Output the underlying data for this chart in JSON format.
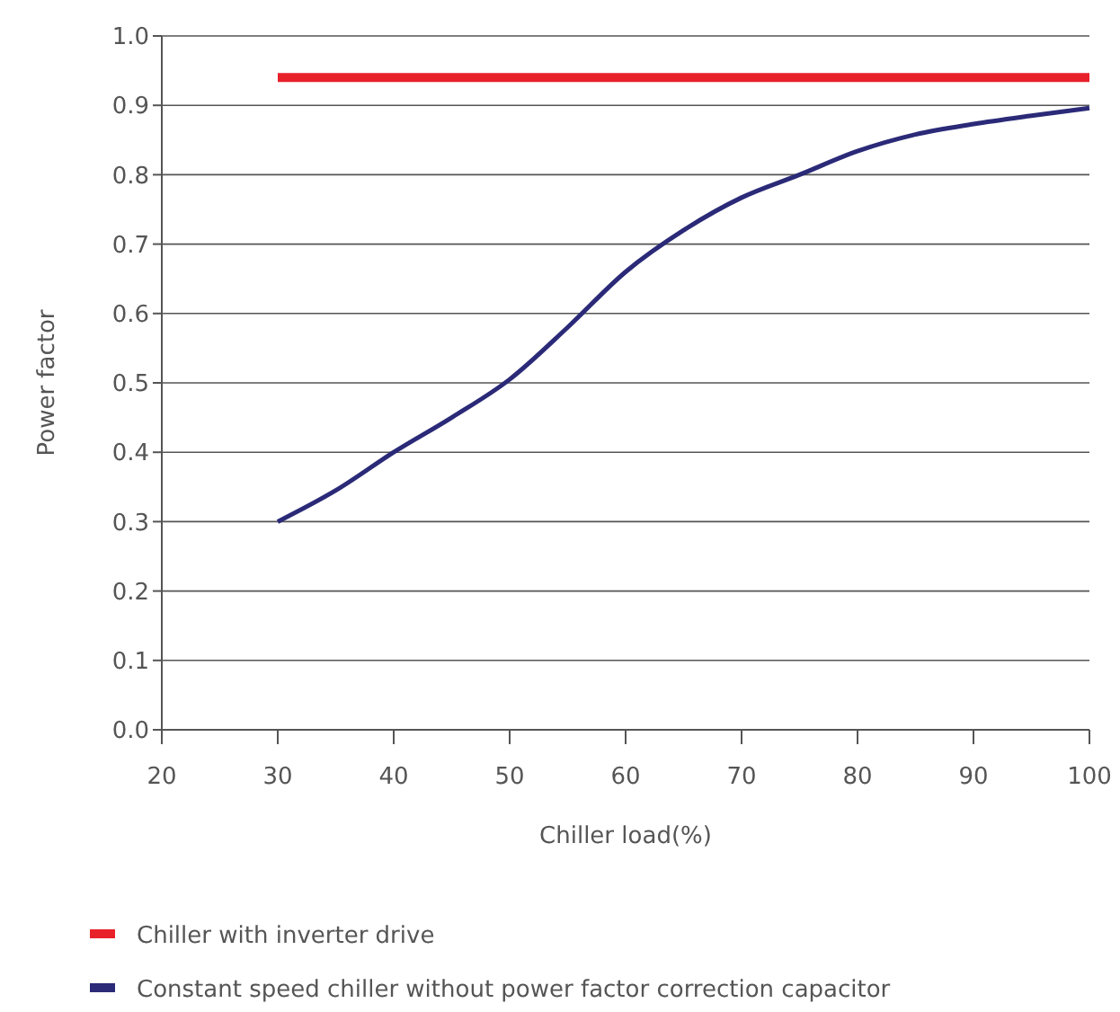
{
  "chart_data": {
    "type": "line",
    "xlabel": "Chiller load(%)",
    "ylabel": "Power factor",
    "xlim": [
      20,
      100
    ],
    "xticks": [
      20,
      30,
      40,
      50,
      60,
      70,
      80,
      90,
      100
    ],
    "ylim": [
      0,
      1.0
    ],
    "yticks": [
      {
        "value": 0,
        "label": "0.0"
      },
      0.1,
      0.2,
      0.3,
      0.4,
      0.5,
      0.6,
      0.7,
      0.8,
      0.9,
      {
        "value": 1,
        "label": "1.0"
      }
    ],
    "grid": "y",
    "legend": "bottom",
    "series": [
      {
        "name": "Chiller with inverter drive",
        "color": "#e8202a",
        "x": [
          30,
          100
        ],
        "values": [
          0.94,
          0.94
        ]
      },
      {
        "name": "Constant speed chiller without power factor correction capacitor",
        "color": "#2b2a78",
        "x": [
          30,
          35,
          40,
          45,
          50,
          55,
          60,
          65,
          70,
          75,
          80,
          85,
          90,
          95,
          100
        ],
        "values": [
          0.3,
          0.345,
          0.4,
          0.45,
          0.505,
          0.58,
          0.66,
          0.72,
          0.767,
          0.8,
          0.834,
          0.858,
          0.873,
          0.885,
          0.896
        ]
      }
    ]
  }
}
